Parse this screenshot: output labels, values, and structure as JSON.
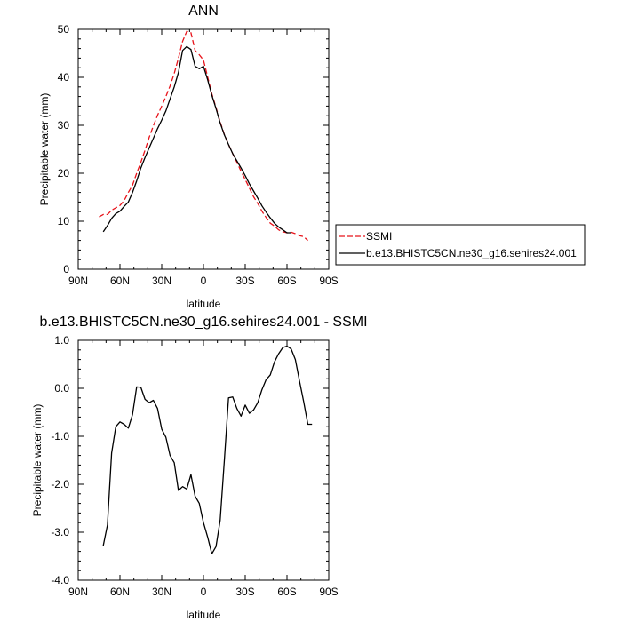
{
  "chart_data": [
    {
      "type": "line",
      "title": "ANN",
      "xlabel": "latitude",
      "ylabel": "Precipitable water (mm)",
      "xlim": [
        90,
        -90
      ],
      "ylim": [
        0,
        50
      ],
      "x_ticks": [
        90,
        60,
        30,
        0,
        -30,
        -60,
        -90
      ],
      "x_tick_labels": [
        "90N",
        "60N",
        "30N",
        "0",
        "30S",
        "60S",
        "90S"
      ],
      "y_ticks": [
        0,
        10,
        20,
        30,
        40,
        50
      ],
      "y_tick_labels": [
        "0",
        "10",
        "20",
        "30",
        "40",
        "50"
      ],
      "legend": "outside-right",
      "series": [
        {
          "name": "SSMI",
          "color": "#e8141b",
          "dash": "dashed",
          "x": [
            75,
            72,
            69,
            66,
            63,
            60,
            57,
            54,
            51,
            48,
            45,
            42,
            39,
            36,
            33,
            30,
            27,
            24,
            21,
            18,
            15,
            12,
            9,
            6,
            3,
            0,
            -3,
            -6,
            -9,
            -12,
            -15,
            -18,
            -21,
            -24,
            -27,
            -30,
            -33,
            -36,
            -39,
            -42,
            -45,
            -48,
            -51,
            -54,
            -57,
            -60,
            -63,
            -66,
            -69,
            -72,
            -75
          ],
          "y": [
            10.9,
            11.4,
            11.4,
            12.3,
            12.8,
            13.3,
            14.3,
            16.0,
            17.5,
            20.0,
            22.3,
            24.8,
            27.5,
            29.9,
            32.1,
            34.0,
            36.0,
            38.2,
            40.8,
            44.0,
            47.5,
            49.6,
            49.3,
            45.6,
            44.7,
            43.6,
            40.1,
            36.6,
            33.7,
            30.7,
            28.1,
            26.0,
            24.1,
            22.3,
            20.4,
            18.7,
            16.9,
            15.1,
            13.7,
            12.1,
            10.8,
            9.6,
            9.0,
            8.2,
            7.8,
            7.6,
            7.7,
            7.4,
            7.0,
            6.8,
            6.0
          ]
        },
        {
          "name": "b.e13.BHISTC5CN.ne30_g16.sehires24.001",
          "color": "#000000",
          "dash": "solid",
          "x": [
            72,
            69,
            66,
            63,
            60,
            57,
            54,
            51,
            48,
            45,
            42,
            39,
            36,
            33,
            30,
            27,
            24,
            21,
            18,
            15,
            12,
            9,
            6,
            3,
            0,
            -3,
            -6,
            -9,
            -12,
            -15,
            -18,
            -21,
            -24,
            -27,
            -30,
            -33,
            -36,
            -39,
            -42,
            -45,
            -48,
            -51,
            -54,
            -57,
            -60,
            -63
          ],
          "y": [
            7.8,
            9.1,
            10.6,
            11.6,
            12.1,
            13.1,
            14.0,
            16.0,
            18.4,
            21.1,
            23.3,
            25.3,
            27.3,
            29.3,
            31.1,
            33.0,
            35.5,
            38.0,
            41.0,
            45.6,
            46.4,
            45.8,
            42.3,
            41.8,
            42.3,
            39.5,
            36.3,
            33.5,
            30.5,
            28.0,
            26.0,
            24.1,
            22.6,
            21.1,
            19.5,
            17.8,
            16.3,
            14.8,
            13.2,
            11.9,
            10.7,
            9.6,
            8.8,
            8.2,
            7.6,
            7.6
          ]
        }
      ]
    },
    {
      "type": "line",
      "title": "b.e13.BHISTC5CN.ne30_g16.sehires24.001 - SSMI",
      "xlabel": "latitude",
      "ylabel": "Precipitable water (mm)",
      "xlim": [
        90,
        -90
      ],
      "ylim": [
        -4.0,
        1.0
      ],
      "x_ticks": [
        90,
        60,
        30,
        0,
        -30,
        -60,
        -90
      ],
      "x_tick_labels": [
        "90N",
        "60N",
        "30N",
        "0",
        "30S",
        "60S",
        "90S"
      ],
      "y_ticks": [
        -4,
        -3,
        -2,
        -1,
        0,
        1
      ],
      "y_tick_labels": [
        "-4.0",
        "-3.0",
        "-2.0",
        "-1.0",
        "0.0",
        "1.0"
      ],
      "series": [
        {
          "name": "",
          "color": "#000000",
          "dash": "solid",
          "x": [
            72,
            69,
            66,
            63,
            60,
            57,
            54,
            51,
            48,
            45,
            42,
            39,
            36,
            33,
            30,
            27,
            24,
            21,
            18,
            15,
            12,
            9,
            6,
            3,
            0,
            -3,
            -6,
            -9,
            -12,
            -15,
            -18,
            -21,
            -24,
            -27,
            -30,
            -33,
            -36,
            -39,
            -42,
            -45,
            -48,
            -51,
            -54,
            -57,
            -60,
            -63,
            -66
          ],
          "y": [
            -3.28,
            -2.85,
            -1.35,
            -0.8,
            -0.7,
            -0.75,
            -0.83,
            -0.55,
            0.03,
            0.02,
            -0.23,
            -0.3,
            -0.25,
            -0.42,
            -0.85,
            -1.02,
            -1.4,
            -1.55,
            -2.13,
            -2.05,
            -2.1,
            -1.8,
            -2.25,
            -2.4,
            -2.8,
            -3.1,
            -3.45,
            -3.3,
            -2.75,
            -1.5,
            -0.2,
            -0.18,
            -0.42,
            -0.58,
            -0.35,
            -0.52,
            -0.45,
            -0.3,
            -0.03,
            0.18,
            0.28,
            0.55,
            0.72,
            0.85,
            0.88,
            0.82,
            0.6
          ]
        }
      ]
    }
  ],
  "extra_tail": {
    "x": [
      -69,
      -72,
      -75,
      -78
    ],
    "y": [
      0.15,
      -0.28,
      -0.75,
      -0.75
    ]
  }
}
